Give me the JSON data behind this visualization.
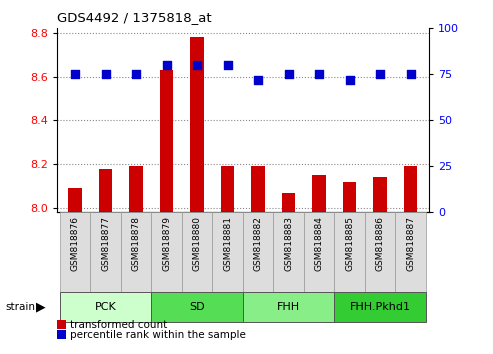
{
  "title": "GDS4492 / 1375818_at",
  "samples": [
    "GSM818876",
    "GSM818877",
    "GSM818878",
    "GSM818879",
    "GSM818880",
    "GSM818881",
    "GSM818882",
    "GSM818883",
    "GSM818884",
    "GSM818885",
    "GSM818886",
    "GSM818887"
  ],
  "red_values": [
    8.09,
    8.18,
    8.19,
    8.63,
    8.78,
    8.19,
    8.19,
    8.07,
    8.15,
    8.12,
    8.14,
    8.19
  ],
  "blue_values": [
    75,
    75,
    75,
    80,
    80,
    80,
    72,
    75,
    75,
    72,
    75,
    75
  ],
  "ylim_left": [
    7.98,
    8.82
  ],
  "ylim_right": [
    0,
    100
  ],
  "yticks_left": [
    8.0,
    8.2,
    8.4,
    8.6,
    8.8
  ],
  "yticks_right": [
    0,
    25,
    50,
    75,
    100
  ],
  "groups": [
    {
      "label": "PCK",
      "start": 0,
      "end": 3,
      "color": "#ccffcc"
    },
    {
      "label": "SD",
      "start": 3,
      "end": 6,
      "color": "#55dd55"
    },
    {
      "label": "FHH",
      "start": 6,
      "end": 9,
      "color": "#88ee88"
    },
    {
      "label": "FHH.Pkhd1",
      "start": 9,
      "end": 12,
      "color": "#33cc33"
    }
  ],
  "red_color": "#cc0000",
  "blue_color": "#0000cc",
  "bar_width": 0.45,
  "dot_size": 35,
  "grid_color": "#888888",
  "sample_box_color": "#dddddd",
  "bg_color": "#ffffff"
}
